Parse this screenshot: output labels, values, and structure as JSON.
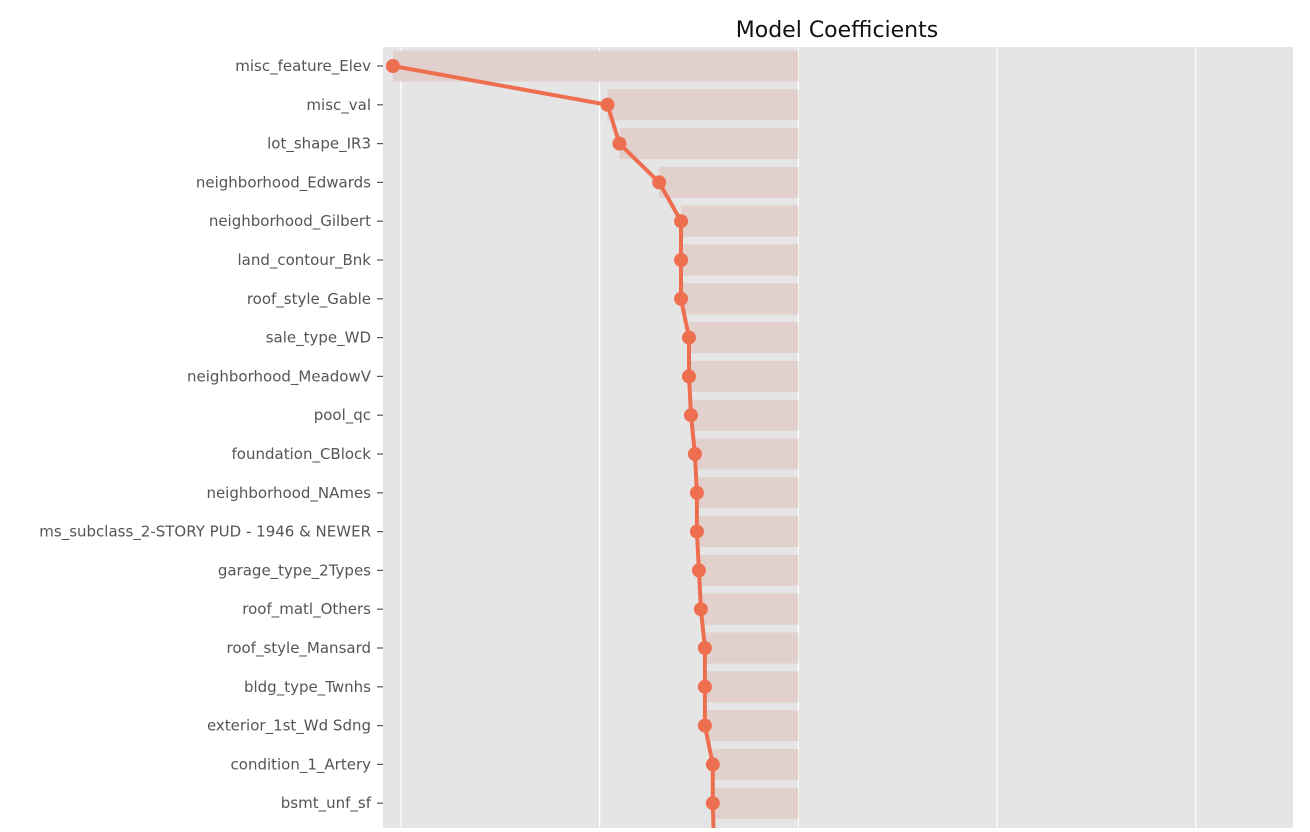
{
  "chart_data": {
    "type": "bar",
    "title": "Model Coefficients",
    "xlabel": "",
    "ylabel": "",
    "orientation": "horizontal",
    "overlay": "line-with-markers",
    "grid": true,
    "categories": [
      "misc_feature_Elev",
      "misc_val",
      "lot_shape_IR3",
      "neighborhood_Edwards",
      "neighborhood_Gilbert",
      "land_contour_Bnk",
      "roof_style_Gable",
      "sale_type_WD ",
      "neighborhood_MeadowV",
      "pool_qc",
      "foundation_CBlock",
      "neighborhood_NAmes",
      "ms_subclass_2-STORY PUD - 1946 & NEWER",
      "garage_type_2Types",
      "roof_matl_Others",
      "roof_style_Mansard",
      "bldg_type_Twnhs",
      "exterior_1st_Wd Sdng",
      "condition_1_Artery",
      "bsmt_unf_sf"
    ],
    "values": [
      -2.04,
      -0.96,
      -0.9,
      -0.7,
      -0.59,
      -0.59,
      -0.59,
      -0.55,
      -0.55,
      -0.54,
      -0.52,
      -0.51,
      -0.51,
      -0.5,
      -0.49,
      -0.47,
      -0.47,
      -0.47,
      -0.43,
      -0.43
    ],
    "xlim": [
      -2.09,
      2.49
    ],
    "colors": {
      "line": "#ee6e50",
      "bar": "#e0ccc7",
      "background": "#e5e5e5",
      "grid": "#ffffff",
      "text": "#555555"
    }
  }
}
